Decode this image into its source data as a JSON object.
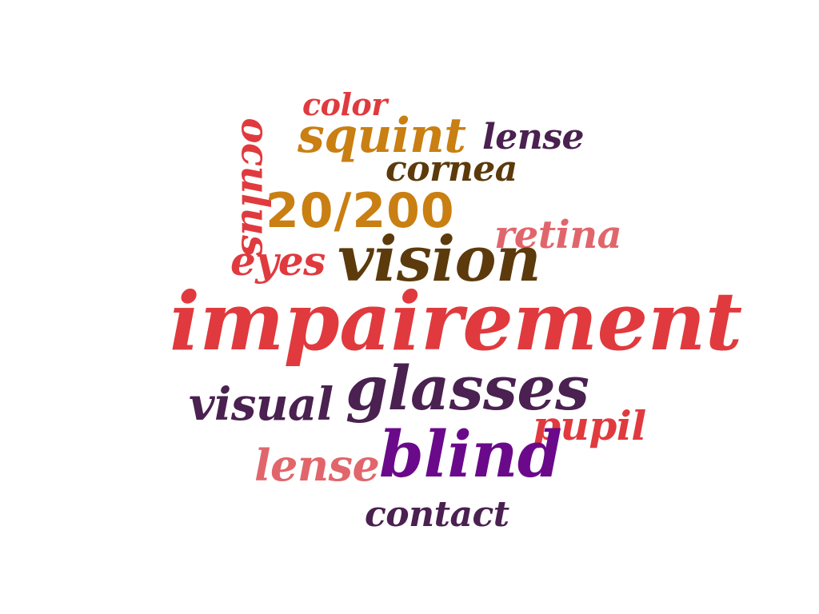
{
  "words": {
    "color": {
      "text": "color",
      "color": "#E03A3E"
    },
    "squint": {
      "text": "squint",
      "color": "#C97F12"
    },
    "lense_top": {
      "text": "lense",
      "color": "#4A2150"
    },
    "oculus": {
      "text": "oculus",
      "color": "#E03A3E"
    },
    "cornea": {
      "text": "cornea",
      "color": "#5C3A0B"
    },
    "fraction": {
      "text": "20/200",
      "color": "#C97F12"
    },
    "retina": {
      "text": "retina",
      "color": "#E0666B"
    },
    "eyes": {
      "text": "eyes",
      "color": "#E03A3E"
    },
    "vision": {
      "text": "vision",
      "color": "#5C3A0B"
    },
    "impairement": {
      "text": "impairement",
      "color": "#E03A3E"
    },
    "visual": {
      "text": "visual",
      "color": "#4A2150"
    },
    "glasses": {
      "text": "glasses",
      "color": "#4A2150"
    },
    "pupil": {
      "text": "pupil",
      "color": "#E03A3E"
    },
    "lense_bottom": {
      "text": "lense",
      "color": "#E0666B"
    },
    "blind": {
      "text": "blind",
      "color": "#6A0A8A"
    },
    "contact": {
      "text": "contact",
      "color": "#4A2150"
    }
  }
}
